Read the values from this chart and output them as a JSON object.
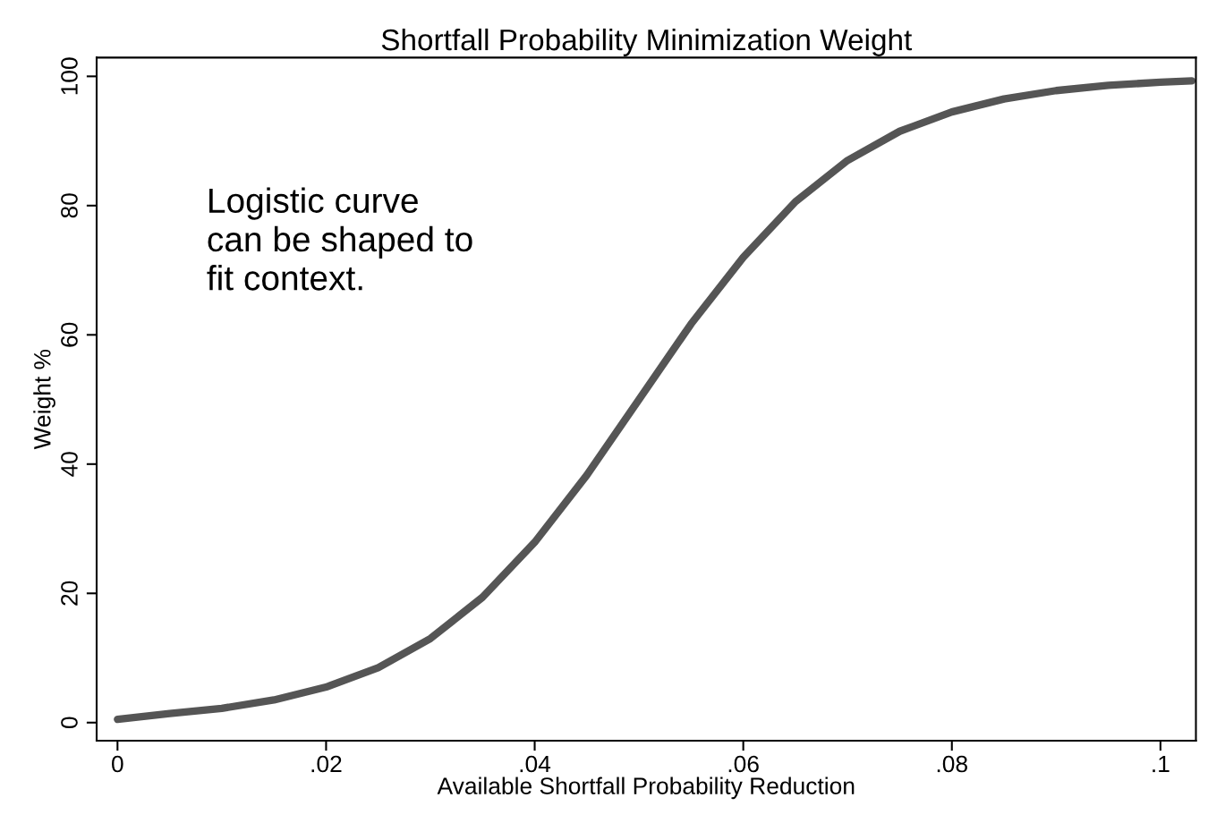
{
  "chart_data": {
    "type": "line",
    "title": "Shortfall Probability Minimization Weight",
    "xlabel": "Available Shortfall Probability Reduction",
    "ylabel": "Weight %",
    "annotations": [
      "Logistic curve\ncan be shaped to\nfit context."
    ],
    "x": [
      0,
      0.005,
      0.01,
      0.015,
      0.02,
      0.025,
      0.03,
      0.035,
      0.04,
      0.045,
      0.05,
      0.055,
      0.06,
      0.065,
      0.07,
      0.075,
      0.08,
      0.085,
      0.09,
      0.095,
      0.1,
      0.103
    ],
    "series": [
      {
        "color": "#555555",
        "values": [
          0.5,
          1.4,
          2.2,
          3.5,
          5.5,
          8.5,
          13,
          19.4,
          27.9,
          38.3,
          50,
          61.7,
          72,
          80.6,
          87,
          91.5,
          94.5,
          96.5,
          97.8,
          98.6,
          99.1,
          99.3
        ]
      }
    ],
    "xlim": [
      -0.002,
      0.1034
    ],
    "ylim": [
      -2.8,
      102.9
    ],
    "xticks": [
      0,
      {
        "value": 0.02,
        "label": ".02"
      },
      {
        "value": 0.04,
        "label": ".04"
      },
      {
        "value": 0.06,
        "label": ".06"
      },
      {
        "value": 0.08,
        "label": ".08"
      },
      {
        "value": 0.1,
        "label": ".1"
      }
    ],
    "yticks": [
      0,
      20,
      40,
      60,
      80,
      100
    ],
    "grid": false,
    "legend": false,
    "marker": "none",
    "line_style": "solid"
  }
}
